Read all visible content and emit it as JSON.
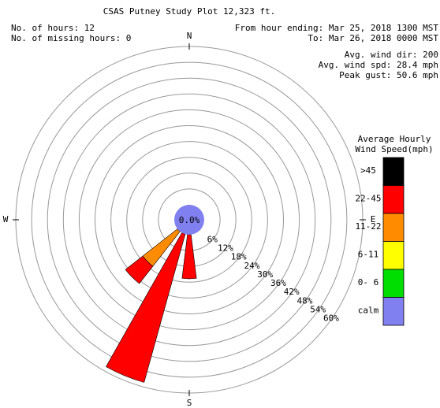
{
  "chart_data": {
    "type": "windrose",
    "title": "CSAS Putney Study Plot 12,323 ft.",
    "left_info": [
      "No. of hours: 12",
      "No. of missing hours: 0"
    ],
    "right_info": [
      "From hour ending: Mar 25, 2018 1300 MST",
      "To: Mar 26, 2018 0000 MST",
      "Avg. wind dir: 200",
      "Avg. wind spd: 28.4 mph",
      "Peak gust: 50.6 mph"
    ],
    "categories": [
      "N",
      null,
      null,
      null,
      "E",
      null,
      null,
      null,
      "S",
      null,
      null,
      null,
      "W",
      null,
      null,
      null
    ],
    "rlim": [
      0,
      60
    ],
    "rticks": [
      {
        "value": 6,
        "label": "6%"
      },
      {
        "value": 12,
        "label": "12%"
      },
      {
        "value": 18,
        "label": "18%"
      },
      {
        "value": 24,
        "label": "24%"
      },
      {
        "value": 30,
        "label": "30%"
      },
      {
        "value": 36,
        "label": "36%"
      },
      {
        "value": 42,
        "label": "42%"
      },
      {
        "value": 48,
        "label": "48%"
      },
      {
        "value": 54,
        "label": "54%"
      },
      {
        "value": 60,
        "label": "60%"
      }
    ],
    "legend_title": [
      "Average Hourly",
      "Wind Speed(mph)"
    ],
    "series": [
      {
        "name": ">45",
        "color": "#000000",
        "values": [
          0,
          0,
          0,
          0,
          0,
          0,
          0,
          0,
          0,
          0,
          0,
          0,
          0,
          0,
          0,
          0
        ]
      },
      {
        "name": "22-45",
        "color": "#ff0000",
        "values": [
          0,
          0,
          0,
          0,
          0,
          0,
          0,
          0,
          16.7,
          58.3,
          8.3,
          0,
          0,
          0,
          0,
          0
        ]
      },
      {
        "name": "11-22",
        "color": "#ff8c00",
        "values": [
          0,
          0,
          0,
          0,
          0,
          0,
          0,
          0,
          0,
          0,
          16.7,
          0,
          0,
          0,
          0,
          0
        ]
      },
      {
        "name": "6-11",
        "color": "#ffff00",
        "values": [
          0,
          0,
          0,
          0,
          0,
          0,
          0,
          0,
          0,
          0,
          0,
          0,
          0,
          0,
          0,
          0
        ]
      },
      {
        "name": "0- 6",
        "color": "#00dd00",
        "values": [
          0,
          0,
          0,
          0,
          0,
          0,
          0,
          0,
          0,
          0,
          0,
          0,
          0,
          0,
          0,
          0
        ]
      }
    ],
    "calm": {
      "name": "calm",
      "color": "#8080f0",
      "value": 0.0,
      "value_label": "0.0%"
    }
  }
}
